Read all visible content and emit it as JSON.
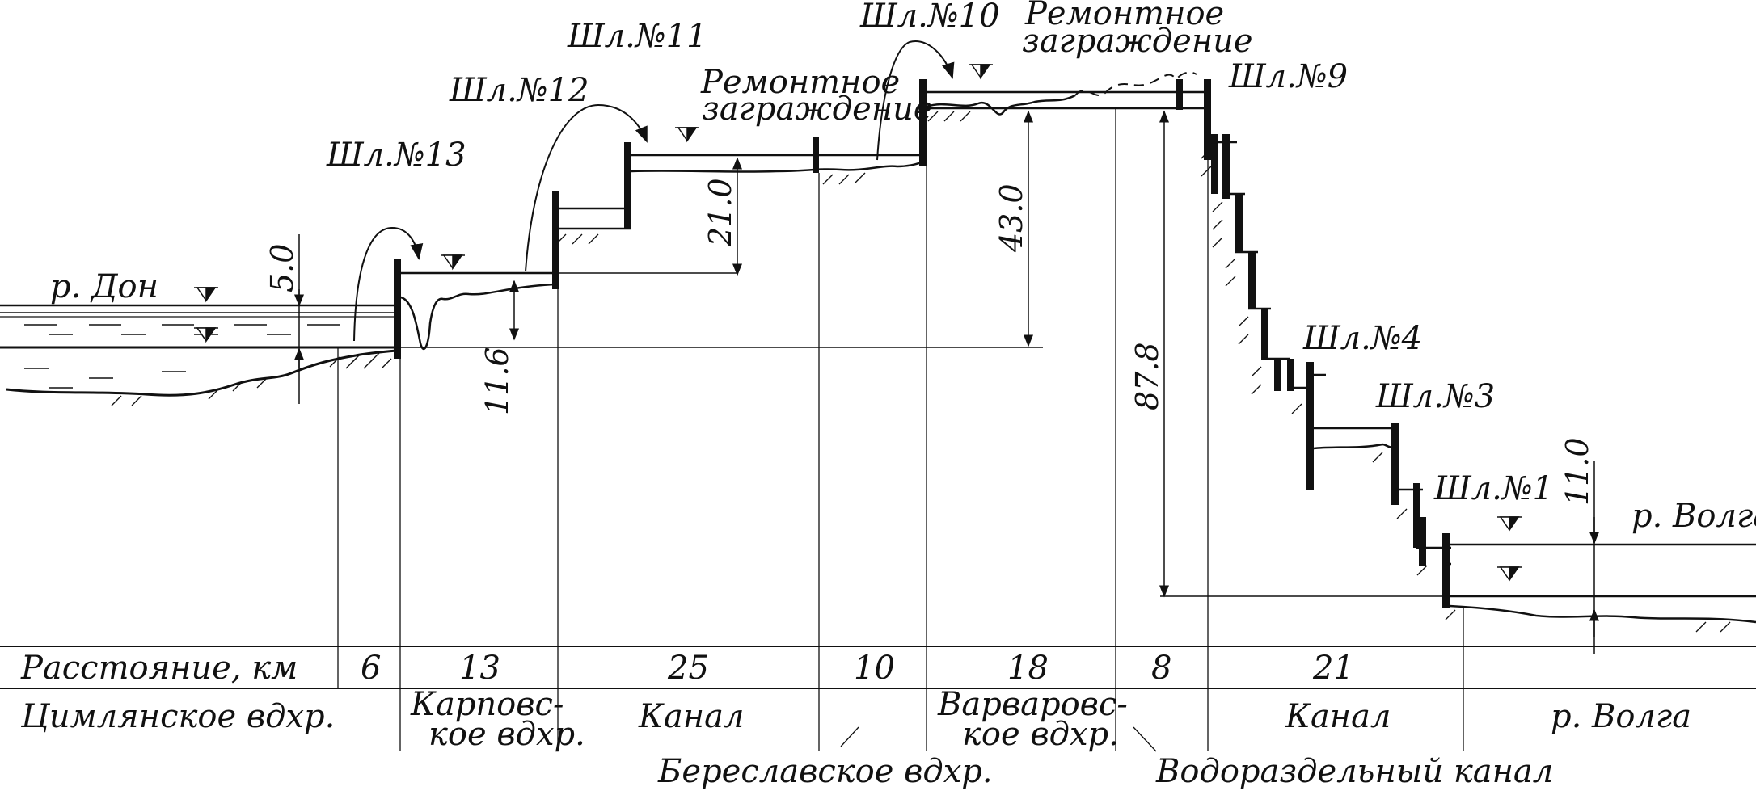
{
  "rivers": {
    "don": "р. Дон",
    "volga": "р. Волга"
  },
  "locks": {
    "l13": "Шл.№13",
    "l12": "Шл.№12",
    "l11": "Шл.№11",
    "l10": "Шл.№10",
    "l9": "Шл.№9",
    "l4": "Шл.№4",
    "l3": "Шл.№3",
    "l1": "Шл.№1"
  },
  "barriers": {
    "b1_line1": "Ремонтное",
    "b1_line2": "заграждение",
    "b2_line1": "Ремонтное",
    "b2_line2": "заграждение"
  },
  "dimensions": {
    "d5_0": "5.0",
    "d11_6": "11.6",
    "d21_0": "21.0",
    "d43_0": "43.0",
    "d87_8": "87.8",
    "d11_0": "11.0"
  },
  "table": {
    "distance_label": "Расстояние, км",
    "distances": [
      "6",
      "13",
      "25",
      "10",
      "18",
      "8",
      "21"
    ],
    "sections": {
      "tsimlyansk": "Цимлянское вдхр.",
      "karpovsk_1": "Карповс-",
      "karpovsk_2": "кое вдхр.",
      "canal_1": "Канал",
      "varvarovsk_1": "Варваровс-",
      "varvarovsk_2": "кое вдхр.",
      "canal_2": "Канал",
      "volga": "р. Волга"
    },
    "bottom": {
      "bereslav": "Береславское вдхр.",
      "watershed": "Водораздельный канал"
    }
  },
  "colors": {
    "ink": "#111111",
    "paper": "#ffffff"
  }
}
